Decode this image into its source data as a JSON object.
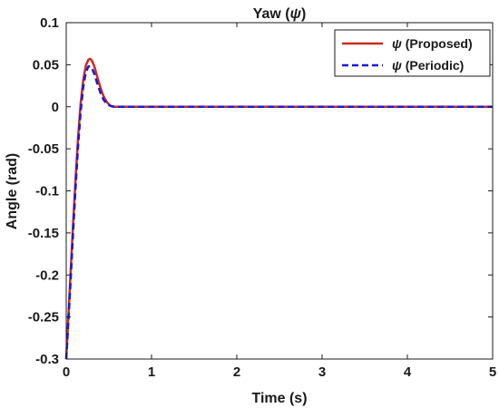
{
  "chart_data": {
    "type": "line",
    "title_prefix": "Yaw (",
    "title_symbol": "ψ",
    "title_suffix": ")",
    "xlabel": "Time (s)",
    "ylabel": "Angle (rad)",
    "xlim": [
      0,
      5
    ],
    "ylim": [
      -0.3,
      0.1
    ],
    "xticks": [
      0,
      1,
      2,
      3,
      4,
      5
    ],
    "yticks": [
      0.1,
      0.05,
      0,
      -0.05,
      -0.1,
      -0.15,
      -0.2,
      -0.25,
      -0.3
    ],
    "grid": false,
    "legend_position": "top-right",
    "series": [
      {
        "symbol": "ψ",
        "label": "(Proposed)",
        "color": "#cc2a1e",
        "style": "solid",
        "x": [
          0,
          0.02,
          0.05,
          0.08,
          0.11,
          0.14,
          0.17,
          0.2,
          0.23,
          0.26,
          0.28,
          0.3,
          0.33,
          0.36,
          0.4,
          0.44,
          0.48,
          0.52,
          0.56,
          0.6,
          0.7,
          1.0,
          2.0,
          3.0,
          4.0,
          5.0
        ],
        "y": [
          -0.3,
          -0.26,
          -0.2,
          -0.14,
          -0.085,
          -0.035,
          0.005,
          0.032,
          0.049,
          0.056,
          0.057,
          0.055,
          0.048,
          0.037,
          0.023,
          0.012,
          0.005,
          0.001,
          0.0,
          0.0,
          0.0,
          0.0,
          0.0,
          0.0,
          0.0,
          0.0
        ]
      },
      {
        "symbol": "ψ",
        "label": "(Periodic)",
        "color": "#1a1ad6",
        "style": "dashed",
        "x": [
          0,
          0.02,
          0.05,
          0.08,
          0.11,
          0.14,
          0.17,
          0.2,
          0.23,
          0.26,
          0.28,
          0.3,
          0.33,
          0.36,
          0.4,
          0.44,
          0.48,
          0.52,
          0.56,
          0.6,
          0.7,
          1.0,
          2.0,
          3.0,
          4.0,
          5.0
        ],
        "y": [
          -0.3,
          -0.265,
          -0.21,
          -0.15,
          -0.095,
          -0.045,
          -0.005,
          0.024,
          0.041,
          0.048,
          0.048,
          0.046,
          0.039,
          0.029,
          0.017,
          0.008,
          0.003,
          0.001,
          0.0,
          0.0,
          0.0,
          0.0,
          0.0,
          0.0,
          0.0,
          0.0
        ]
      }
    ]
  }
}
